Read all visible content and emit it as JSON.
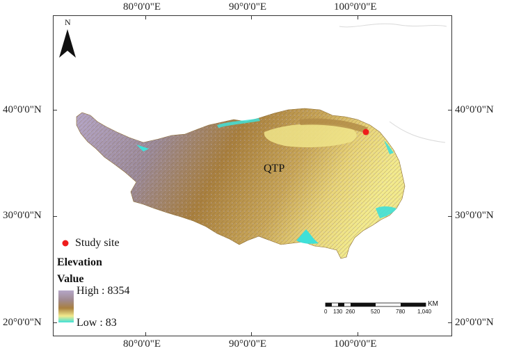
{
  "map": {
    "north_label": "N",
    "region_label": "QTP",
    "top_lon_labels": [
      "80°0'0\"E",
      "90°0'0\"E",
      "100°0'0\"E"
    ],
    "bottom_lon_labels": [
      "80°0'0\"E",
      "90°0'0\"E",
      "100°0'0\"E"
    ],
    "left_lat_labels": [
      "40°0'0\"N",
      "30°0'0\"N",
      "20°0'0\"N"
    ],
    "right_lat_labels": [
      "40°0'0\"N",
      "30°0'0\"N",
      "20°0'0\"N"
    ],
    "colors": {
      "elevation_high": "#b5a6c8",
      "elevation_mid": "#a9803f",
      "elevation_low": "#f2ea8e",
      "elevation_min": "#3fe0d8",
      "study_site_marker": "#ee1c1c"
    }
  },
  "legend": {
    "study_site": "Study site",
    "elevation_title": "Elevation",
    "value_title": "Value",
    "high": "High : 8354",
    "low": "Low : 83"
  },
  "scale_bar": {
    "unit": "KM",
    "ticks": [
      "0",
      "130",
      "260",
      "520",
      "780",
      "1,040"
    ]
  }
}
